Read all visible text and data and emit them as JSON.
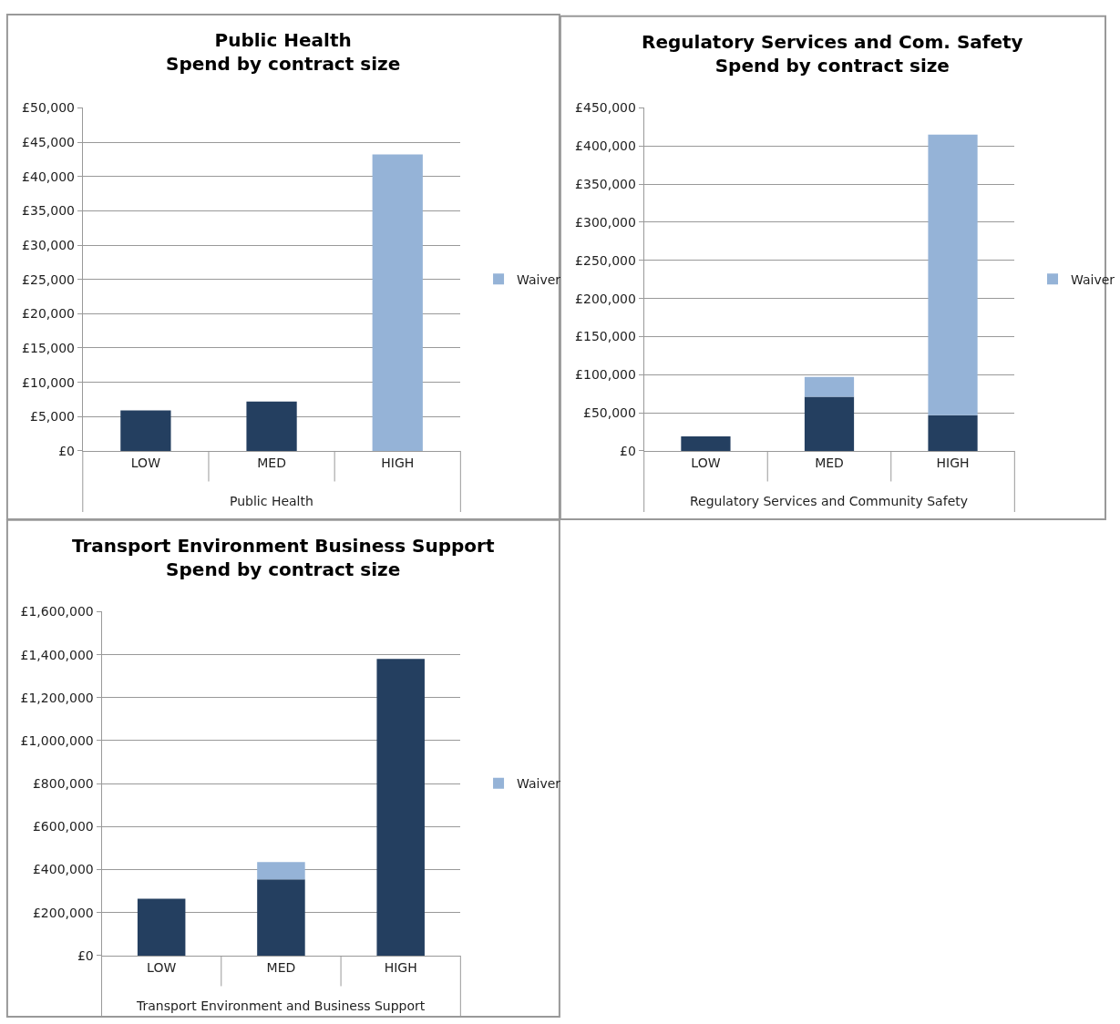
{
  "chart_data": [
    {
      "type": "bar",
      "title": "Public Health\nSpend by contract size",
      "xlabel": "Public Health",
      "categories": [
        "LOW",
        "MED",
        "HIGH"
      ],
      "stacked": true,
      "grid": "y",
      "legend": "right",
      "series": [
        {
          "color": "#243f60",
          "values": [
            5900,
            7200,
            null
          ]
        },
        {
          "name": "Waiver",
          "color": "#95b3d7",
          "values": [
            null,
            null,
            43200
          ]
        }
      ],
      "ylim": [
        0,
        50000
      ],
      "yticks": [
        {
          "value": 0,
          "label": "£0"
        },
        {
          "value": 5000,
          "label": "£5,000"
        },
        {
          "value": 10000,
          "label": "£10,000"
        },
        {
          "value": 15000,
          "label": "£15,000"
        },
        {
          "value": 20000,
          "label": "£20,000"
        },
        {
          "value": 25000,
          "label": "£25,000"
        },
        {
          "value": 30000,
          "label": "£30,000"
        },
        {
          "value": 35000,
          "label": "£35,000"
        },
        {
          "value": 40000,
          "label": "£40,000"
        },
        {
          "value": 45000,
          "label": "£45,000"
        },
        {
          "value": 50000,
          "label": "£50,000"
        }
      ]
    },
    {
      "type": "bar",
      "title": "Regulatory Services and Com. Safety\nSpend by contract size",
      "xlabel": "Regulatory Services and Community Safety",
      "categories": [
        "LOW",
        "MED",
        "HIGH"
      ],
      "stacked": true,
      "grid": "y",
      "legend": "right",
      "series": [
        {
          "color": "#243f60",
          "values": [
            19000,
            71000,
            47000
          ]
        },
        {
          "name": "Waiver",
          "color": "#95b3d7",
          "values": [
            null,
            26000,
            368000
          ]
        }
      ],
      "ylim": [
        0,
        450000
      ],
      "yticks": [
        {
          "value": 0,
          "label": "£0"
        },
        {
          "value": 50000,
          "label": "£50,000"
        },
        {
          "value": 100000,
          "label": "£100,000"
        },
        {
          "value": 150000,
          "label": "£150,000"
        },
        {
          "value": 200000,
          "label": "£200,000"
        },
        {
          "value": 250000,
          "label": "£250,000"
        },
        {
          "value": 300000,
          "label": "£300,000"
        },
        {
          "value": 350000,
          "label": "£350,000"
        },
        {
          "value": 400000,
          "label": "£400,000"
        },
        {
          "value": 450000,
          "label": "£450,000"
        }
      ]
    },
    {
      "type": "bar",
      "title": "Transport Environment Business Support\nSpend by contract size",
      "xlabel": "Transport Environment and Business Support",
      "categories": [
        "LOW",
        "MED",
        "HIGH"
      ],
      "stacked": true,
      "grid": "y",
      "legend": "right",
      "series": [
        {
          "color": "#243f60",
          "values": [
            265000,
            355000,
            1380000
          ]
        },
        {
          "name": "Waiver",
          "color": "#95b3d7",
          "values": [
            null,
            80000,
            null
          ]
        }
      ],
      "ylim": [
        0,
        1600000
      ],
      "yticks": [
        {
          "value": 0,
          "label": "£0"
        },
        {
          "value": 200000,
          "label": "£200,000"
        },
        {
          "value": 400000,
          "label": "£400,000"
        },
        {
          "value": 600000,
          "label": "£600,000"
        },
        {
          "value": 800000,
          "label": "£800,000"
        },
        {
          "value": 1000000,
          "label": "£1,000,000"
        },
        {
          "value": 1200000,
          "label": "£1,200,000"
        },
        {
          "value": 1400000,
          "label": "£1,400,000"
        },
        {
          "value": 1600000,
          "label": "£1,600,000"
        }
      ]
    }
  ]
}
